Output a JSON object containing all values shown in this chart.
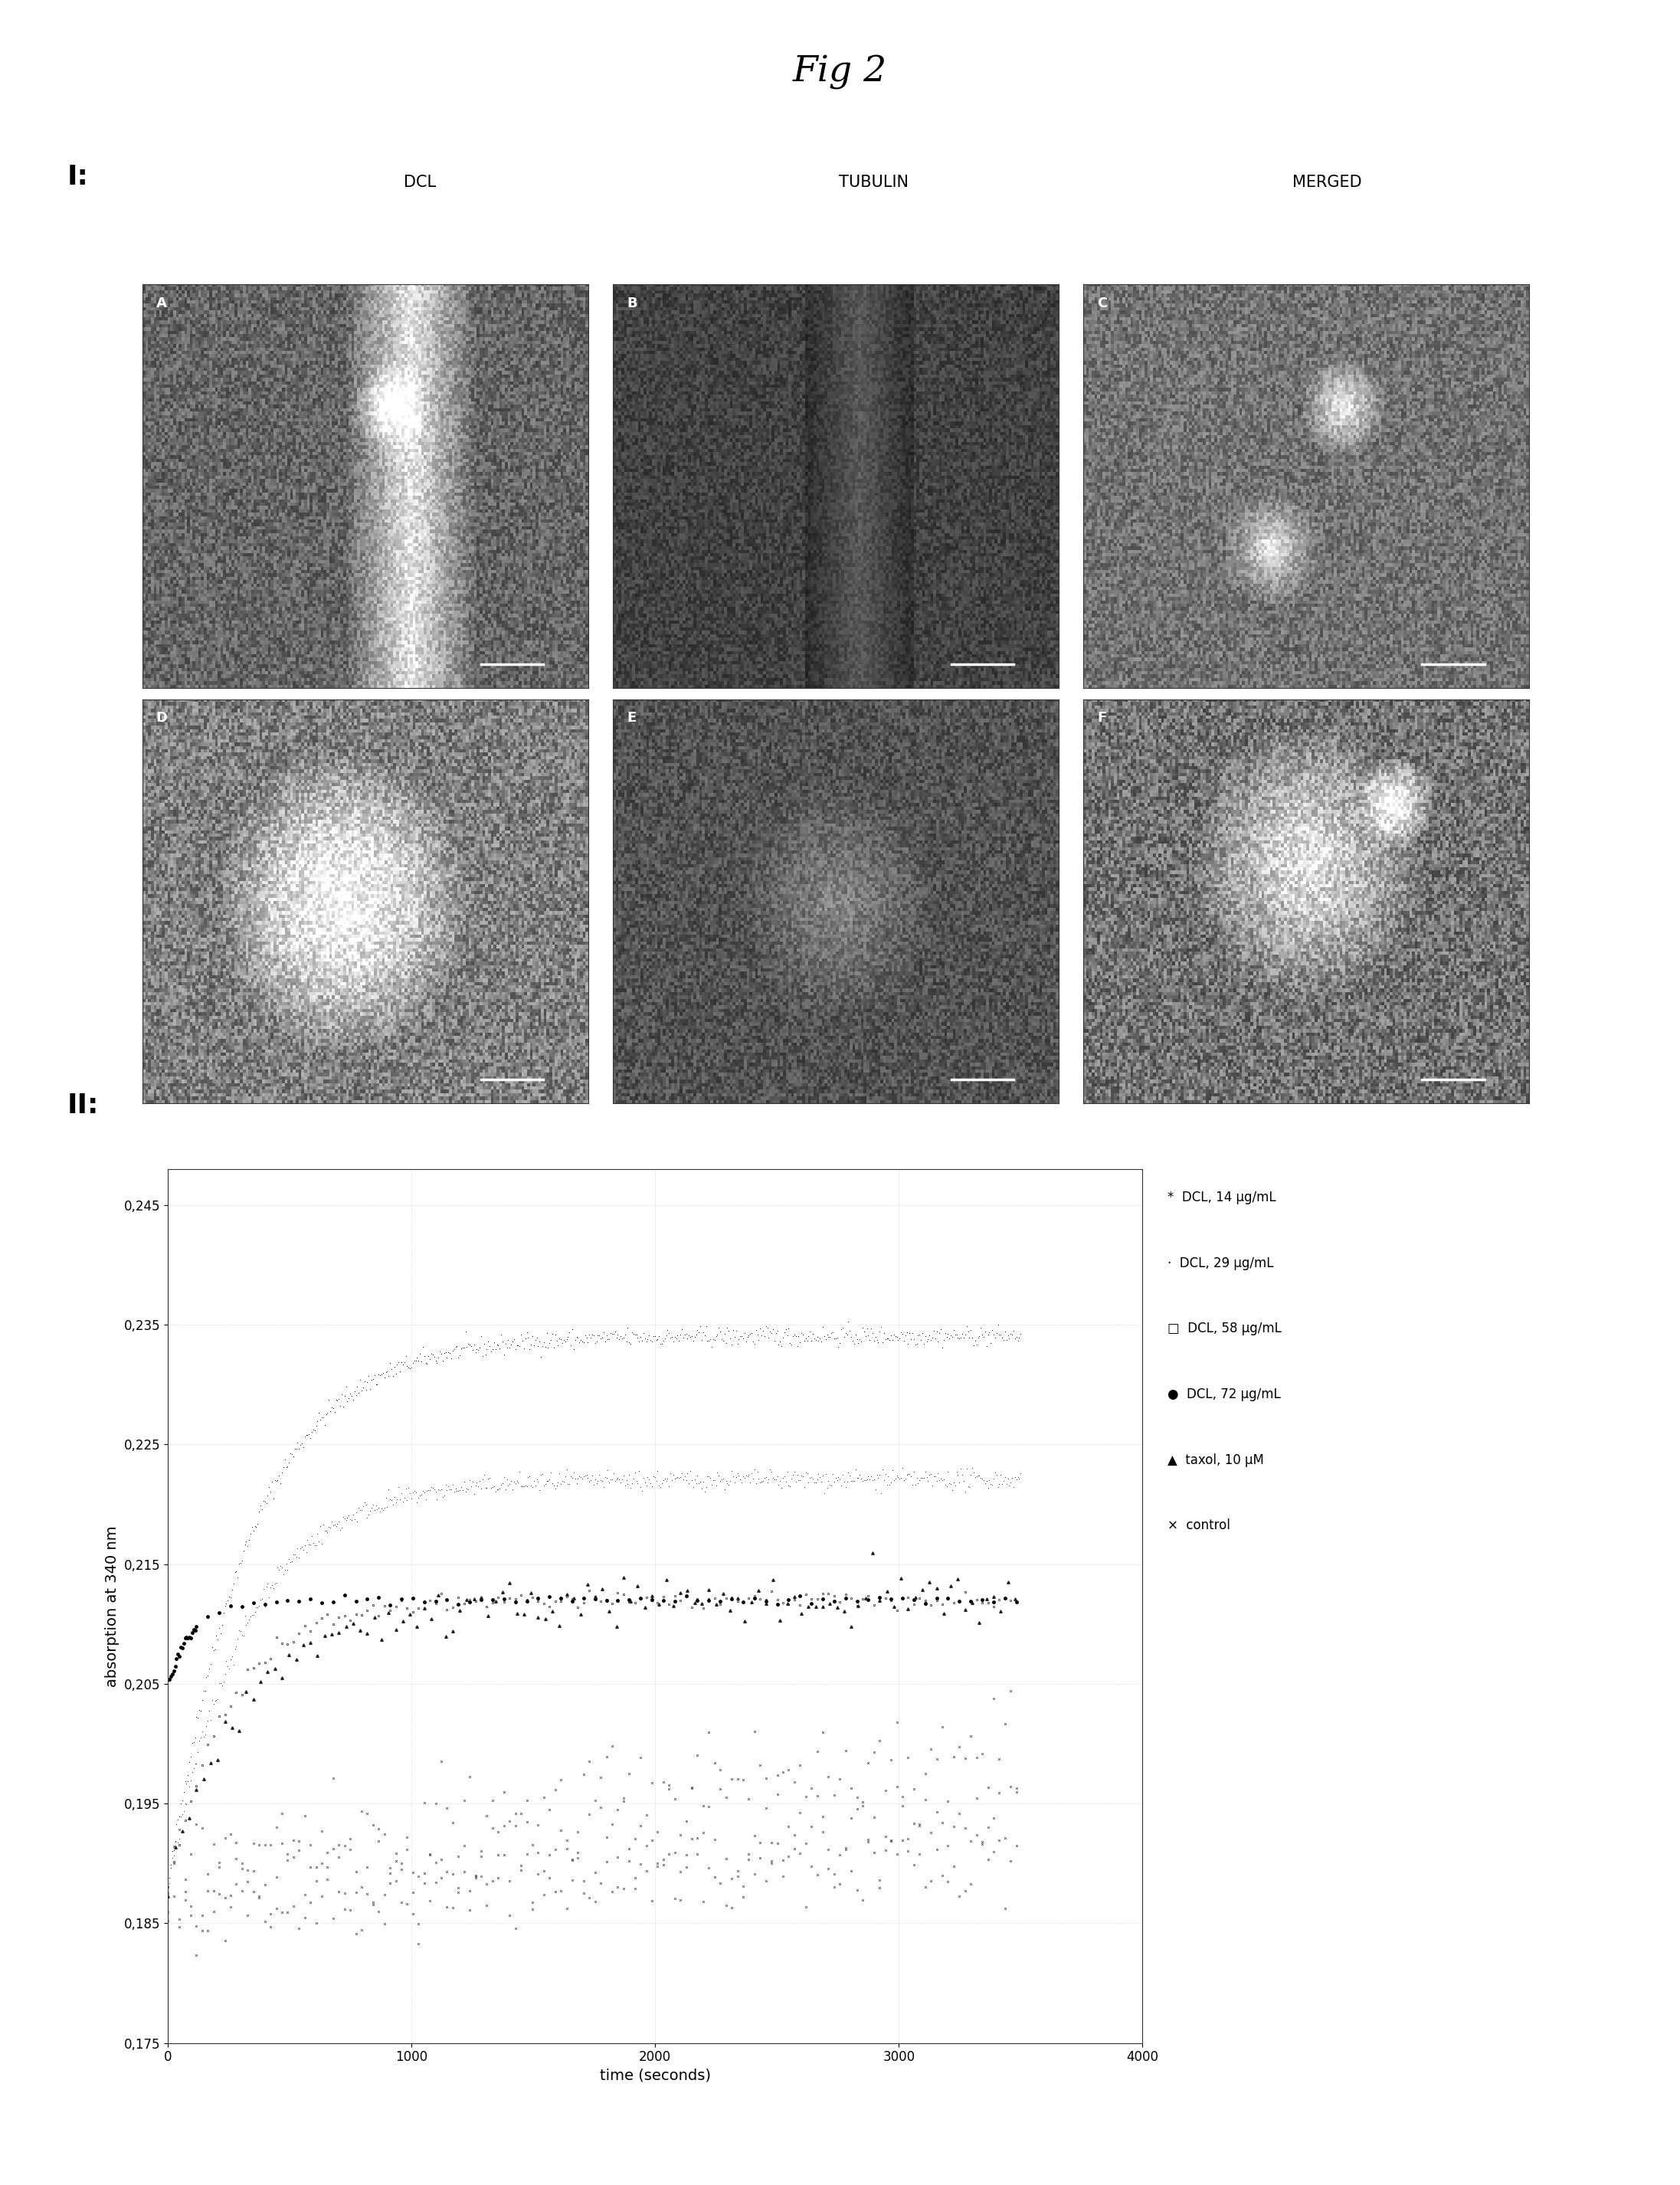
{
  "title": "Fig 2",
  "title_fontsize": 34,
  "title_style": "italic",
  "panel_I_label": "I:",
  "panel_II_label": "II:",
  "panel_label_fontsize": 26,
  "col_labels": [
    "DCL",
    "TUBULIN",
    "MERGED"
  ],
  "col_label_fontsize": 15,
  "xlabel": "time (seconds)",
  "ylabel": "absorption at 340 nm",
  "xlim": [
    0,
    4000
  ],
  "ylim": [
    0.175,
    0.248
  ],
  "xticks": [
    0,
    1000,
    2000,
    3000,
    4000
  ],
  "yticks": [
    0.175,
    0.185,
    0.195,
    0.205,
    0.215,
    0.225,
    0.235,
    0.245
  ],
  "axis_label_fontsize": 14,
  "tick_fontsize": 12,
  "background_color": "#ffffff",
  "seed": 42,
  "legend_entries": [
    [
      "*",
      "DCL, 14 μg/mL"
    ],
    [
      "·",
      "DCL, 29 μg/mL"
    ],
    [
      "□",
      "DCL, 58 μg/mL"
    ],
    [
      "●",
      "DCL, 72 μg/mL"
    ],
    [
      "▲",
      "taxol, 10 μM"
    ],
    [
      "×",
      "control"
    ]
  ],
  "legend_fontsize": 12
}
